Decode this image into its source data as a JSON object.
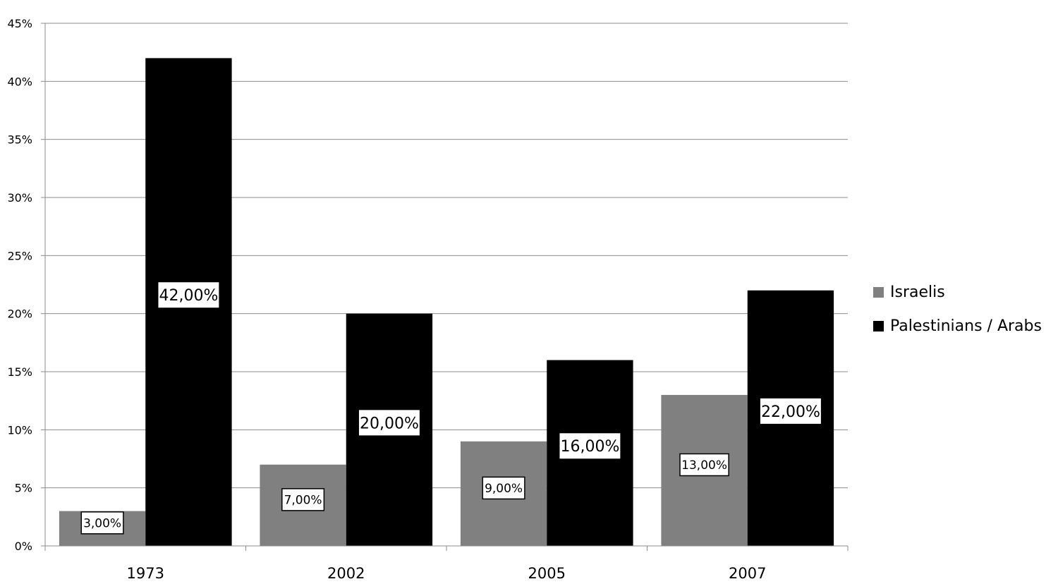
{
  "chart_data": {
    "type": "bar",
    "categories": [
      "1973",
      "2002",
      "2005",
      "2007"
    ],
    "series": [
      {
        "name": "Israelis",
        "values": [
          3,
          7,
          9,
          13
        ],
        "labels": [
          "3,00%",
          "7,00%",
          "9,00%",
          "13,00%"
        ],
        "color": "#808080"
      },
      {
        "name": "Palestinians / Arabs",
        "values": [
          42,
          20,
          16,
          22
        ],
        "labels": [
          "42,00%",
          "20,00%",
          "16,00%",
          "22,00%"
        ],
        "color": "#000000"
      }
    ],
    "title": "",
    "xlabel": "",
    "ylabel": "",
    "ylim": [
      0,
      45
    ],
    "yticks": [
      "0%",
      "5%",
      "10%",
      "15%",
      "20%",
      "25%",
      "30%",
      "35%",
      "40%",
      "45%"
    ],
    "grid": true,
    "legend_position": "right"
  }
}
